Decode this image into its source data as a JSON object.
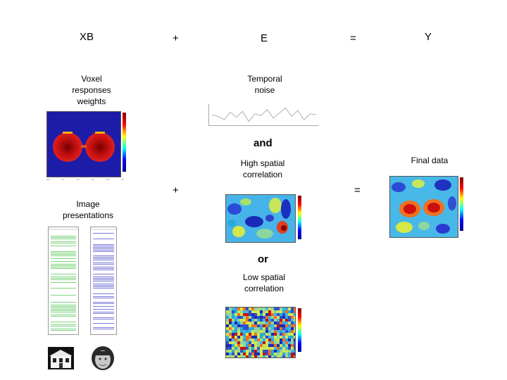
{
  "equation": {
    "xb": "XB",
    "plus": "+",
    "e": "E",
    "equals": "=",
    "y": "Y"
  },
  "labels": {
    "voxel": [
      "Voxel",
      "responses",
      "weights"
    ],
    "temporal": [
      "Temporal",
      "noise"
    ],
    "and": "and",
    "high": [
      "High spatial",
      "correlation"
    ],
    "final": "Final data",
    "image": [
      "Image",
      "presentations"
    ],
    "or": "or",
    "low": [
      "Low spatial",
      "correlation"
    ]
  },
  "row2_operators": {
    "plus": "+",
    "equals": "="
  },
  "temporal_noise_series": [
    0.5,
    0.4,
    0.2,
    0.65,
    0.35,
    0.7,
    0.1,
    0.55,
    0.45,
    0.8,
    0.3,
    0.6,
    0.9,
    0.4,
    0.75,
    0.2,
    0.55,
    0.5
  ],
  "colors": {
    "map_background": "#1a1aa0",
    "blob": "#d31515",
    "blob_center": "#8b0000",
    "green_stimulus": "#7fd37f",
    "blue_stimulus": "#7b7bd9"
  },
  "icons": {
    "house": "house-photo-icon",
    "face": "face-photo-icon"
  }
}
